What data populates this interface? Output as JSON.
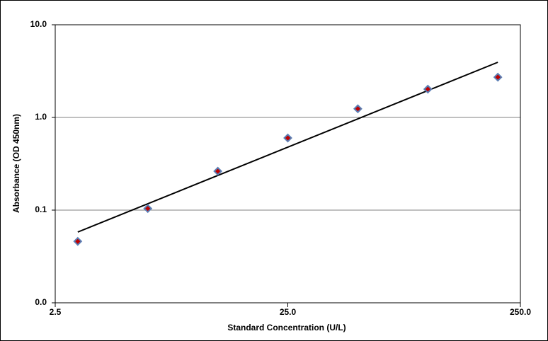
{
  "chart_data": {
    "type": "scatter",
    "x_label": "Standard Concentration (U/L)",
    "y_label": "Absorbance (OD 450nm)",
    "x": [
      3.125,
      6.25,
      12.5,
      25,
      50,
      100,
      200
    ],
    "values": [
      0.046,
      0.104,
      0.263,
      0.6,
      1.24,
      2.02,
      2.72
    ],
    "marker_color": "#c00000",
    "marker_edge": "#5b7fb5",
    "trendline": {
      "x": [
        3.125,
        200
      ],
      "y": [
        0.058,
        3.94
      ],
      "color": "#000000"
    },
    "xlim": [
      2.5,
      250
    ],
    "ylim": [
      0.01,
      10
    ],
    "xticks": [
      2.5,
      {
        "value": 25,
        "label": "25.0"
      },
      {
        "value": 250,
        "label": "250.0"
      }
    ],
    "yticks": [
      {
        "value": 0.01,
        "label": "0.0"
      },
      0.1,
      {
        "value": 1,
        "label": "1.0"
      },
      {
        "value": 10,
        "label": "10.0"
      }
    ],
    "xscale": "log",
    "yscale": "log",
    "grid": true
  }
}
